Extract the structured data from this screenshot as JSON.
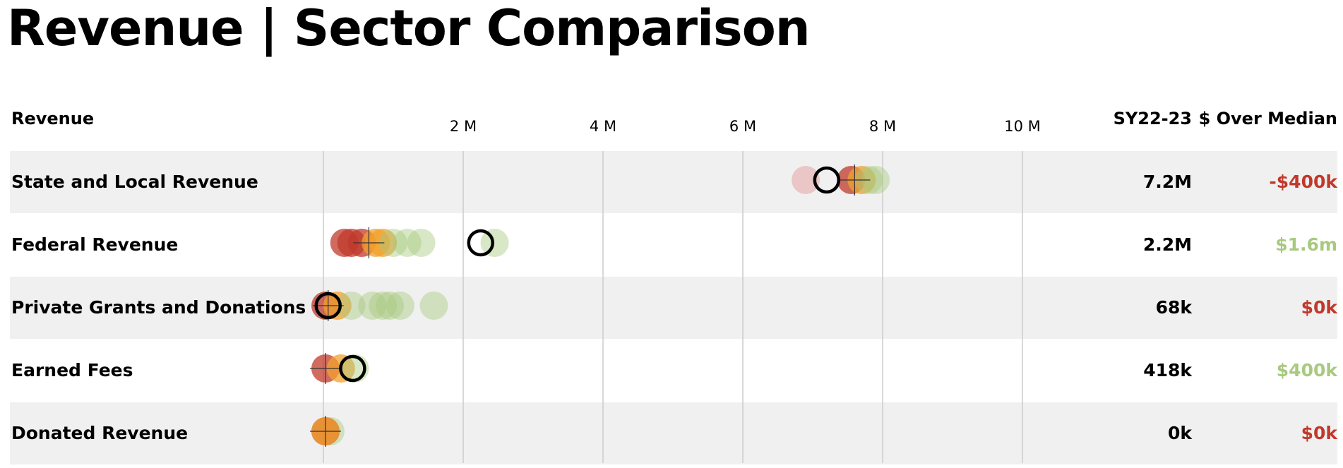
{
  "title": "Revenue | Sector Comparison",
  "header": {
    "category_label": "Revenue",
    "value_label": "SY22-23",
    "diff_label": "$ Over Median"
  },
  "colors": {
    "low": "#c0392b",
    "median": "#f2a12c",
    "high": "#a8c97f",
    "negative": "#c0392b",
    "positive": "#a8c97f",
    "row_shade": "#f0f0f0",
    "grid": "#cccccc"
  },
  "chart_data": {
    "type": "scatter",
    "xlim": [
      0,
      11000000
    ],
    "xticks": [
      2000000,
      4000000,
      6000000,
      8000000,
      10000000
    ],
    "xtick_labels": [
      "2 M",
      "4 M",
      "6 M",
      "8 M",
      "10 M"
    ],
    "rows": [
      {
        "label": "State and Local Revenue",
        "value_text": "7.2M",
        "diff_text": "-$400k",
        "diff_sign": "negative",
        "selected": 7200000,
        "median": 7600000,
        "peers": [
          {
            "v": 6900000,
            "c": "pink"
          },
          {
            "v": 7550000,
            "c": "low"
          },
          {
            "v": 7700000,
            "c": "median"
          },
          {
            "v": 7800000,
            "c": "high"
          },
          {
            "v": 7900000,
            "c": "high"
          }
        ]
      },
      {
        "label": "Federal Revenue",
        "value_text": "2.2M",
        "diff_text": "$1.6m",
        "diff_sign": "positive",
        "selected": 2250000,
        "median": 650000,
        "peers": [
          {
            "v": 300000,
            "c": "low"
          },
          {
            "v": 400000,
            "c": "low"
          },
          {
            "v": 550000,
            "c": "low"
          },
          {
            "v": 750000,
            "c": "median"
          },
          {
            "v": 850000,
            "c": "median"
          },
          {
            "v": 1000000,
            "c": "high"
          },
          {
            "v": 1200000,
            "c": "high"
          },
          {
            "v": 1400000,
            "c": "high"
          },
          {
            "v": 2450000,
            "c": "high"
          }
        ]
      },
      {
        "label": "Private Grants and Donations",
        "value_text": "68k",
        "diff_text": "$0k",
        "diff_sign": "negative",
        "selected": 68000,
        "median": 68000,
        "peers": [
          {
            "v": 30000,
            "c": "low"
          },
          {
            "v": 200000,
            "c": "median"
          },
          {
            "v": 400000,
            "c": "high"
          },
          {
            "v": 700000,
            "c": "high"
          },
          {
            "v": 850000,
            "c": "high"
          },
          {
            "v": 950000,
            "c": "high"
          },
          {
            "v": 1100000,
            "c": "high"
          },
          {
            "v": 1580000,
            "c": "high"
          }
        ]
      },
      {
        "label": "Earned Fees",
        "value_text": "418k",
        "diff_text": "$400k",
        "diff_sign": "positive",
        "selected": 418000,
        "median": 30000,
        "peers": [
          {
            "v": 30000,
            "c": "low"
          },
          {
            "v": 250000,
            "c": "median"
          },
          {
            "v": 450000,
            "c": "high"
          }
        ]
      },
      {
        "label": "Donated Revenue",
        "value_text": "0k",
        "diff_text": "$0k",
        "diff_sign": "negative",
        "selected": null,
        "median": 30000,
        "peers": [
          {
            "v": 100000,
            "c": "high"
          },
          {
            "v": 30000,
            "c": "low"
          },
          {
            "v": 30000,
            "c": "median"
          }
        ]
      }
    ]
  }
}
